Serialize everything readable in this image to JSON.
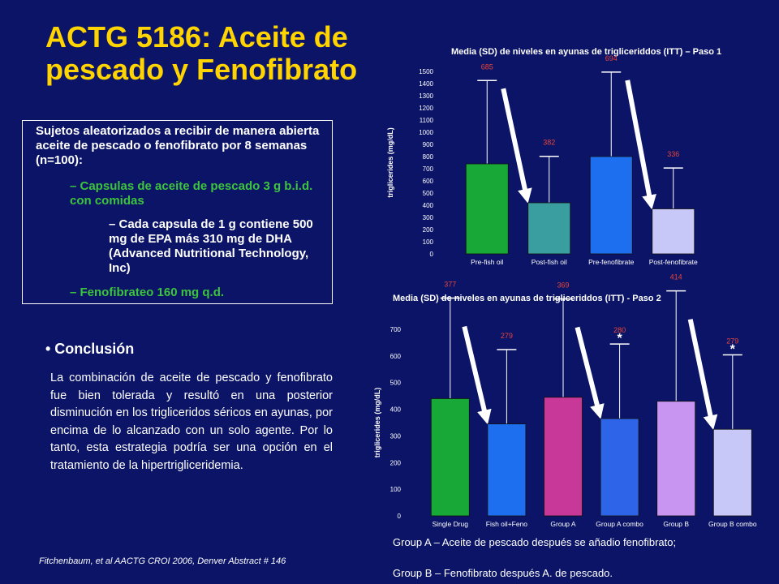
{
  "title": "ACTG 5186: Aceite de pescado y Fenofibrato",
  "box": {
    "main": "Sujetos aleatorizados a recibir de manera abierta aceite de pescado o fenofibrato por 8 semanas (n=100):",
    "item1": "– Capsulas de aceite de pescado 3 g b.i.d. con comidas",
    "item1_sub": "– Cada capsula de 1 g contiene 500 mg de EPA más 310 mg de DHA (Advanced Nutritional Technology, Inc)",
    "item2": "– Fenofibrateo 160 mg q.d."
  },
  "conclusion": {
    "heading": "• Conclusión",
    "body": "La combinación de aceite de pescado y fenofibrato fue bien tolerada y resultó en una posterior disminución en los trigliceridos séricos en ayunas, por encima de lo alcanzado con un solo agente. Por lo tanto, esta estrategia podría ser una opción en el tratamiento de la hipertrigliceridemia."
  },
  "citation": "Fitchenbaum, et al AACTG CROI 2006, Denver Abstract # 146",
  "notes": {
    "groupA": "Group A – Aceite de pescado después se añadio fenofibrato;",
    "groupB": "Group B – Fenofibrato después A. de pescado."
  },
  "colors": {
    "background": "#0b1466",
    "title": "#ffd400",
    "green_text": "#3cc43c",
    "sd_label": "#e8453c"
  },
  "chart_data": [
    {
      "type": "bar",
      "title": "Media (SD) de niveles en ayunas de trigliceriddos (ITT) – Paso 1",
      "ylabel": "triglicerides (mg/dL)",
      "categories": [
        "Pre-fish oil",
        "Post-fish oil",
        "Pre-fenofibrate",
        "Post-fenofibrate"
      ],
      "values": [
        740,
        420,
        800,
        370
      ],
      "sd_labels": [
        "685",
        "382",
        "694",
        "336"
      ],
      "colors": [
        "#18a838",
        "#3a9ea0",
        "#1e6ef0",
        "#c8c8f8"
      ],
      "ylim": [
        0,
        1500
      ],
      "yticks": [
        0,
        100,
        200,
        300,
        400,
        500,
        600,
        700,
        800,
        900,
        1000,
        1100,
        1200,
        1300,
        1400,
        1500
      ],
      "arrows": true
    },
    {
      "type": "bar",
      "title": "Media (SD) de niveles en ayunas de trigliceriddos (ITT) - Paso 2",
      "ylabel": "triglicerides (mg/dL)",
      "categories": [
        "Single Drug",
        "Fish oil+Feno",
        "Group A",
        "Group A combo",
        "Group B",
        "Group B combo"
      ],
      "values": [
        440,
        345,
        445,
        365,
        430,
        325
      ],
      "sd_labels": [
        "377",
        "279",
        "369",
        "280",
        "414",
        "279"
      ],
      "significance": [
        "",
        "",
        "",
        "*",
        "",
        "*"
      ],
      "colors": [
        "#18a838",
        "#1e6ef0",
        "#c83898",
        "#2e64e8",
        "#c896f0",
        "#c8c8f8"
      ],
      "ylim": [
        0,
        700
      ],
      "yticks": [
        0,
        100,
        200,
        300,
        400,
        500,
        600,
        700
      ],
      "arrows": true
    }
  ]
}
